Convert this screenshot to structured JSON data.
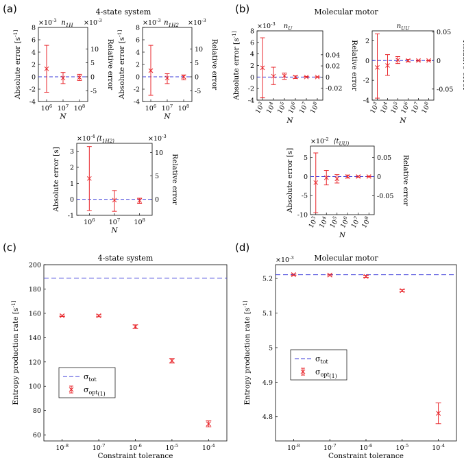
{
  "colors": {
    "error_bar": "#e8262b",
    "reference_line": "#3b3bd9",
    "axis": "#000000"
  },
  "panel_labels": [
    "(a)",
    "(b)",
    "(c)",
    "(d)"
  ],
  "panel_titles": [
    "4-state system",
    "Molecular motor",
    "4-state system",
    "Molecular motor"
  ],
  "chart_data": [
    {
      "type": "scatter",
      "panel": "(a)",
      "title": "4-state system",
      "subtitle": "n_1H",
      "xlabel": "N",
      "ylabel": "Absolute error [s^-1]",
      "ylabel2": "Relative error",
      "y_multiplier": "×10^-3",
      "y2_multiplier": "×10^-3",
      "x": [
        1000000,
        10000000,
        100000000
      ],
      "xtick_labels": [
        "10^6",
        "10^7",
        "10^8"
      ],
      "y": [
        1.3,
        -0.2,
        -0.1
      ],
      "y_lower": [
        -2.5,
        -1.1,
        -0.6
      ],
      "y_upper": [
        5.1,
        0.7,
        0.4
      ],
      "ylim": [
        -4,
        8
      ],
      "yticks": [
        -4,
        -2,
        0,
        2,
        4,
        6,
        8
      ],
      "y2ticks": [
        -5,
        0,
        5,
        10
      ],
      "y2_values_at_left": [
        -2.26,
        0,
        2.26,
        4.52
      ],
      "reference_line": 0
    },
    {
      "type": "scatter",
      "panel": "(a)",
      "title": "4-state system",
      "subtitle": "n_1H2",
      "xlabel": "N",
      "ylabel": "Absolute error [s^-1]",
      "ylabel2": "Relative error",
      "y_multiplier": "×10^-3",
      "y2_multiplier": "×10^-3",
      "x": [
        1000000,
        10000000,
        100000000
      ],
      "xtick_labels": [
        "10^6",
        "10^7",
        "10^8"
      ],
      "y": [
        1.0,
        -0.2,
        0.0
      ],
      "y_lower": [
        -3.0,
        -1.1,
        -0.5
      ],
      "y_upper": [
        5.1,
        0.5,
        0.3
      ],
      "ylim": [
        -4,
        8
      ],
      "yticks": [
        -4,
        -2,
        0,
        2,
        4,
        6,
        8
      ],
      "y2ticks": [
        -5,
        0,
        5,
        10
      ],
      "y2_values_at_left": [
        -2.26,
        0,
        2.26,
        4.52
      ],
      "reference_line": 0
    },
    {
      "type": "scatter",
      "panel": "(a)",
      "title": "4-state system",
      "subtitle": "⟨t_1H2⟩",
      "xlabel": "N",
      "ylabel": "Absolute error [s]",
      "ylabel2": "Relative error",
      "y_multiplier": "×10^-4",
      "y2_multiplier": "×10^-3",
      "x": [
        1000000,
        10000000,
        100000000
      ],
      "xtick_labels": [
        "10^6",
        "10^7",
        "10^8"
      ],
      "y": [
        1.3,
        -0.05,
        -0.08
      ],
      "y_lower": [
        -0.7,
        -0.75,
        -0.25
      ],
      "y_upper": [
        3.3,
        0.55,
        0.07
      ],
      "ylim": [
        -1,
        3.5
      ],
      "yticks": [
        -1,
        0,
        1,
        2,
        3
      ],
      "y2ticks": [
        0,
        5,
        10
      ],
      "y2_values_at_left": [
        0,
        1.46,
        2.92
      ],
      "reference_line": 0
    },
    {
      "type": "scatter",
      "panel": "(b)",
      "title": "Molecular motor",
      "subtitle": "n_U",
      "xlabel": "N",
      "ylabel": "Absolute error [s^-1]",
      "ylabel2": "Relative error",
      "y_multiplier": "×10^-3",
      "x": [
        1000,
        10000,
        100000,
        1000000,
        10000000,
        100000000
      ],
      "xtick_labels": [
        "10^3",
        "10^4",
        "10^5",
        "10^6",
        "10^7",
        "10^8"
      ],
      "y": [
        1.6,
        0.15,
        0.2,
        0.0,
        0.0,
        0.0
      ],
      "y_lower": [
        -3.6,
        -1.3,
        -0.4,
        -0.25,
        -0.1,
        -0.05
      ],
      "y_upper": [
        6.8,
        1.7,
        0.7,
        0.2,
        0.1,
        0.05
      ],
      "ylim": [
        -4,
        8
      ],
      "yticks": [
        -4,
        -2,
        0,
        2,
        4,
        6,
        8
      ],
      "y2ticks": [
        -0.02,
        0,
        0.02,
        0.04
      ],
      "y2_values_at_left": [
        -1.93,
        0,
        1.93,
        3.86
      ],
      "reference_line": 0
    },
    {
      "type": "scatter",
      "panel": "(b)",
      "title": "Molecular motor",
      "subtitle": "n_UU",
      "xlabel": "N",
      "ylabel": "",
      "ylabel2": "Relative error",
      "y_multiplier": "",
      "x": [
        1000,
        10000,
        100000,
        1000000,
        10000000,
        100000000
      ],
      "xtick_labels": [
        "10^3",
        "10^4",
        "10^5",
        "10^6",
        "10^7",
        "10^8"
      ],
      "y": [
        -0.7,
        -0.5,
        0.05,
        0.0,
        0.0,
        0.0
      ],
      "y_lower": [
        -3.8,
        -1.5,
        -0.3,
        -0.12,
        -0.05,
        -0.03
      ],
      "y_upper": [
        2.7,
        0.6,
        0.4,
        0.12,
        0.05,
        0.03
      ],
      "ylim": [
        -4,
        3
      ],
      "yticks": [
        -4,
        -2,
        0,
        2
      ],
      "y2ticks": [
        -0.05,
        0,
        0.05
      ],
      "y2_values_at_left": [
        -2.88,
        0,
        2.88
      ],
      "reference_line": 0
    },
    {
      "type": "scatter",
      "panel": "(b)",
      "title": "Molecular motor",
      "subtitle": "⟨t_UU⟩",
      "xlabel": "N",
      "ylabel": "Absolute error [s]",
      "ylabel2": "Relative error",
      "y_multiplier": "×10^-2",
      "x": [
        1000,
        10000,
        100000,
        1000000,
        10000000,
        100000000
      ],
      "xtick_labels": [
        "10^3",
        "10^4",
        "10^5",
        "10^6",
        "10^7",
        "10^8"
      ],
      "y": [
        -1.6,
        -0.3,
        -0.6,
        0.0,
        0.0,
        0.0
      ],
      "y_lower": [
        -9.5,
        -2.2,
        -1.7,
        -0.4,
        -0.15,
        -0.08
      ],
      "y_upper": [
        6.2,
        1.6,
        0.5,
        0.4,
        0.15,
        0.08
      ],
      "ylim": [
        -10,
        8
      ],
      "yticks": [
        -10,
        -5,
        0,
        5
      ],
      "y2ticks": [
        -0.05,
        0,
        0.05
      ],
      "y2_values_at_left": [
        -5.04,
        0,
        5.04
      ],
      "reference_line": 0
    },
    {
      "type": "scatter",
      "panel": "(c)",
      "title": "4-state system",
      "xlabel": "Constraint tolerance",
      "ylabel": "Entropy production rate [s^-1]",
      "x": [
        1e-08,
        1e-07,
        1e-06,
        1e-05,
        0.0001
      ],
      "xtick_labels": [
        "10^-8",
        "10^-7",
        "10^-6",
        "10^-5",
        "10^-4"
      ],
      "series": [
        {
          "name": "σ_tot",
          "type": "hline",
          "value": 189
        },
        {
          "name": "σ_opt^(1)",
          "type": "errorbar",
          "values": [
            158,
            158,
            149,
            121,
            69
          ],
          "errors": [
            0.6,
            0.8,
            1.5,
            1.8,
            2.5
          ]
        }
      ],
      "ylim": [
        55,
        200
      ],
      "yticks": [
        60,
        80,
        100,
        120,
        140,
        160,
        180,
        200
      ],
      "legend": "center-left"
    },
    {
      "type": "scatter",
      "panel": "(d)",
      "title": "Molecular motor",
      "xlabel": "Constraint tolerance",
      "ylabel": "Entropy production rate [s^-1]",
      "y_multiplier": "×10^-3",
      "x": [
        1e-08,
        1e-07,
        1e-06,
        1e-05,
        0.0001
      ],
      "xtick_labels": [
        "10^-8",
        "10^-7",
        "10^-6",
        "10^-5",
        "10^-4"
      ],
      "series": [
        {
          "name": "σ_tot",
          "type": "hline",
          "value": 5.211
        },
        {
          "name": "σ_opt^(1)",
          "type": "errorbar",
          "values": [
            5.211,
            5.21,
            5.206,
            5.165,
            4.81
          ],
          "errors": [
            0.002,
            0.002,
            0.003,
            0.003,
            0.03
          ]
        }
      ],
      "ylim": [
        4.73,
        5.24
      ],
      "yticks": [
        4.8,
        4.9,
        5.0,
        5.1,
        5.2
      ],
      "ytick_labels": [
        "4.8",
        "4.9",
        "5",
        "5.1",
        "5.2"
      ],
      "legend": "center-left"
    }
  ]
}
